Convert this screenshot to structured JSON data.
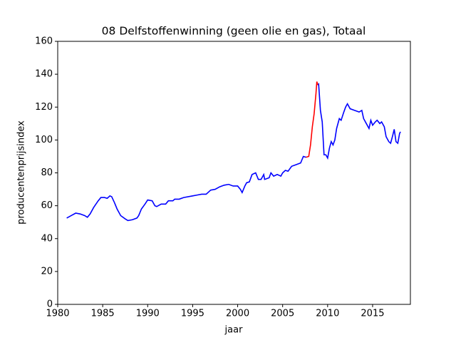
{
  "chart_data": {
    "type": "line",
    "title": "08 Delfstoffenwinning (geen olie en gas), Totaal",
    "xlabel": "jaar",
    "ylabel": "producentenprijsindex",
    "xlim": [
      1980,
      2019.2
    ],
    "xticks": [
      1980,
      1985,
      1990,
      1995,
      2000,
      2005,
      2010,
      2015
    ],
    "ylim": [
      0,
      160
    ],
    "yticks": [
      0,
      20,
      40,
      60,
      80,
      100,
      120,
      140,
      160
    ],
    "series": [
      {
        "color": "#0000ff",
        "x": [
          1981.0,
          1981.5,
          1982,
          1982.5,
          1983,
          1983.3,
          1983.6,
          1984,
          1984.5,
          1984.8,
          1985.2,
          1985.5,
          1985.8,
          1986,
          1986.3,
          1986.6,
          1987,
          1987.5,
          1987.8,
          1988.3,
          1988.8,
          1989,
          1989.3,
          1989.7,
          1990,
          1990.5,
          1990.8,
          1991,
          1991.5,
          1992,
          1992.3,
          1992.8,
          1993,
          1993.5,
          1994,
          1995,
          1995.5,
          1996,
          1996.5,
          1997,
          1997.5,
          1998,
          1998.5,
          1999,
          1999.5,
          2000,
          2000.3,
          2000.5,
          2000.8,
          2001,
          2001.3,
          2001.6,
          2002,
          2002.3,
          2002.6,
          2002.9,
          2003,
          2003.5,
          2003.7,
          2004,
          2004.4,
          2004.8,
          2005,
          2005.3,
          2005.6,
          2006,
          2006.5,
          2007,
          2007.3,
          2007.6,
          2008.3,
          2008.9,
          2009.0,
          2009.2,
          2009.4,
          2009.6,
          2009.8,
          2010.0,
          2010.2,
          2010.4,
          2010.6,
          2010.8,
          2011,
          2011.3,
          2011.5,
          2011.8,
          2012,
          2012.2,
          2012.5,
          2013,
          2013.5,
          2013.8,
          2014,
          2014.3,
          2014.6,
          2014.8,
          2015,
          2015.3,
          2015.5,
          2015.8,
          2016,
          2016.3,
          2016.5,
          2016.8,
          2017,
          2017.2,
          2017.4,
          2017.6,
          2017.8,
          2018,
          2018.1
        ],
        "values": [
          52.5,
          54,
          55.5,
          55,
          54,
          53,
          55,
          59,
          63,
          65,
          65,
          64.5,
          66,
          65.5,
          62,
          58,
          54,
          52,
          51,
          51.5,
          52.5,
          54,
          58,
          61,
          63.5,
          63,
          60,
          59.5,
          61,
          61,
          63,
          63,
          64,
          64,
          65,
          66,
          66.5,
          67,
          67,
          69.5,
          70,
          71.5,
          72.5,
          73,
          72,
          72,
          70,
          68,
          72,
          74,
          74.5,
          79,
          80,
          76,
          76,
          79,
          76,
          77,
          80,
          78,
          79,
          78,
          80,
          81.5,
          81,
          84,
          85,
          86,
          90,
          89.5,
          null,
          133.5,
          134,
          118,
          111,
          91,
          91,
          89,
          95,
          99,
          97,
          100,
          107,
          113,
          112,
          117,
          120,
          122,
          119,
          118,
          117,
          118,
          113,
          110,
          107,
          112,
          109,
          111,
          112,
          110,
          111,
          108,
          102,
          99,
          98,
          102,
          106.5,
          99,
          98,
          104,
          105
        ]
      },
      {
        "color": "#ff0000",
        "x": [
          2007.6,
          2007.9,
          2008.1,
          2008.3,
          2008.5,
          2008.7,
          2008.8,
          2008.9
        ],
        "values": [
          89.5,
          90,
          97,
          108,
          116,
          128,
          135.5,
          133.5
        ]
      }
    ]
  }
}
